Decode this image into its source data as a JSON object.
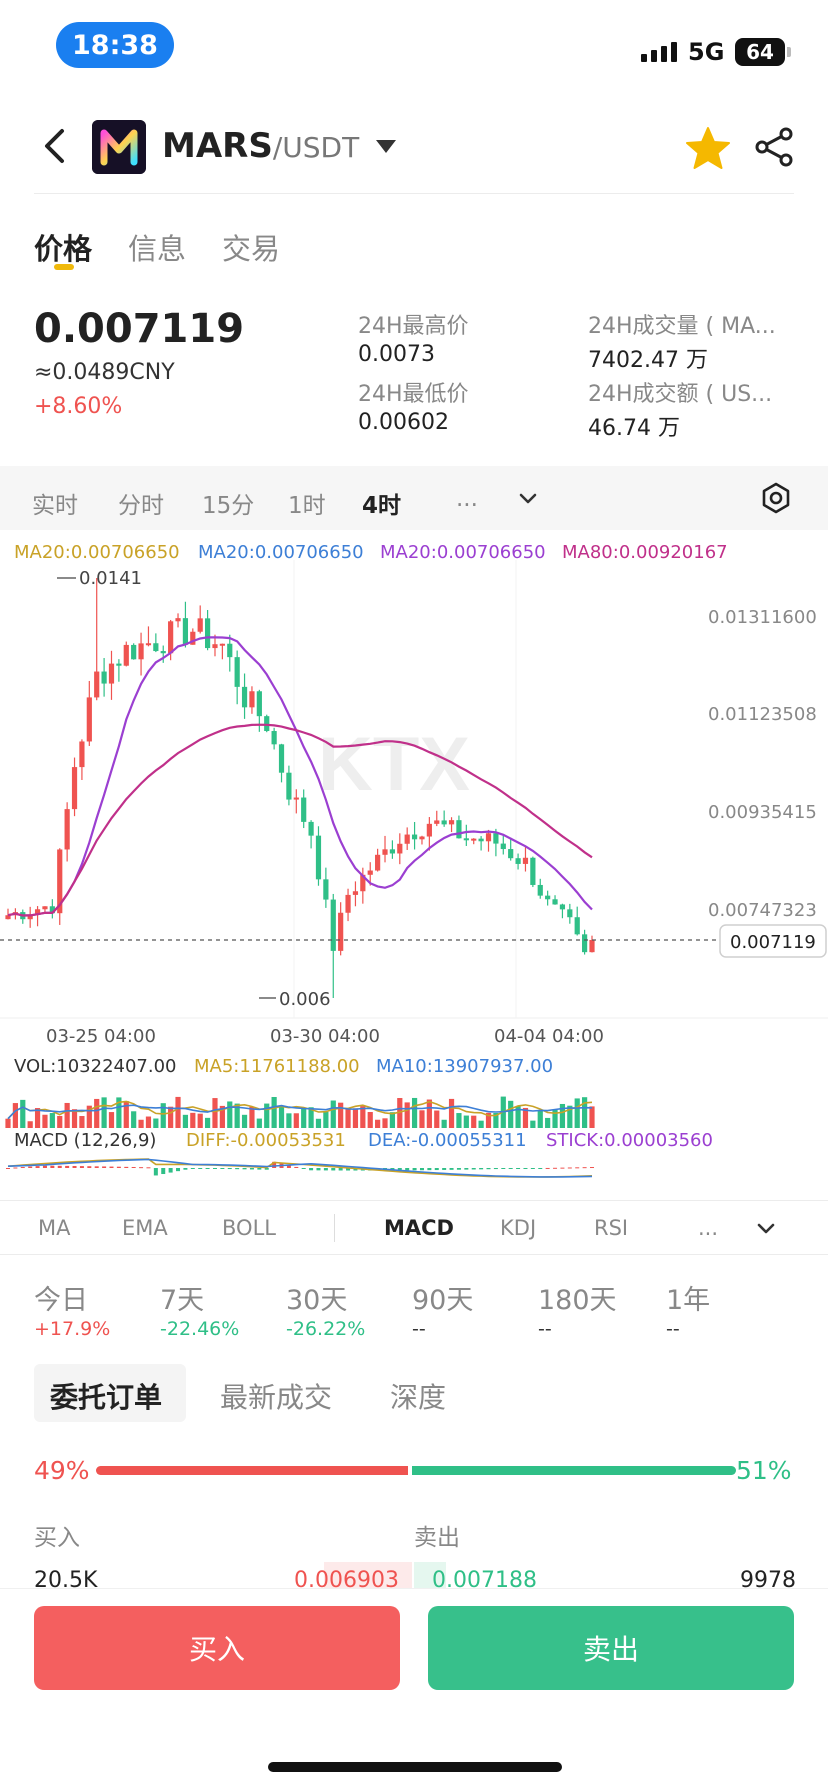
{
  "status_bar": {
    "time": "18:38",
    "network": "5G",
    "battery": "64"
  },
  "header": {
    "base": "MARS",
    "quote": "/USDT"
  },
  "tabs": [
    "价格",
    "信息",
    "交易"
  ],
  "price": {
    "last": "0.007119",
    "cny": "≈0.0489CNY",
    "change": "+8.60%"
  },
  "stats": {
    "high_label": "24H最高价",
    "high": "0.0073",
    "low_label": "24H最低价",
    "low": "0.00602",
    "vol_label": "24H成交量 ( MA...",
    "vol": "7402.47 万",
    "amt_label": "24H成交额 ( US...",
    "amt": "46.74 万"
  },
  "intervals": [
    "实时",
    "分时",
    "15分",
    "1时",
    "4时",
    "..."
  ],
  "ma_legend": [
    {
      "text": "MA20:0.00706650",
      "color": "#c9a227"
    },
    {
      "text": "MA20:0.00706650",
      "color": "#3d7fd6"
    },
    {
      "text": "MA20:0.00706650",
      "color": "#9b3fd1"
    },
    {
      "text": "MA80:0.00920167",
      "color": "#c0308a"
    }
  ],
  "chart": {
    "watermark": "KTX",
    "y_ticks": [
      "0.01311600",
      "0.01123508",
      "0.00935415",
      "0.00747323"
    ],
    "current_price": "0.007119",
    "max_label": "0.0141",
    "min_label": "0.006",
    "x_ticks": [
      "03-25 04:00",
      "03-30 04:00",
      "04-04 04:00"
    ],
    "vol_legend": {
      "vol": "VOL:10322407.00",
      "ma5": "MA5:11761188.00",
      "ma10": "MA10:13907937.00"
    },
    "macd_legend": {
      "name": "MACD (12,26,9)",
      "diff": "DIFF:-0.00053531",
      "dea": "DEA:-0.00055311",
      "stick": "STICK:0.00003560"
    }
  },
  "chart_data": {
    "type": "candlestick",
    "y_ticks": [
      0.013116,
      0.01123508,
      0.00935415,
      0.00747323
    ],
    "ylim": [
      0.0059,
      0.0145
    ],
    "high": 0.0141,
    "low": 0.006,
    "last": 0.007119,
    "x_ticks": [
      "03-25 04:00",
      "03-30 04:00",
      "04-04 04:00"
    ],
    "series": [
      {
        "name": "MA20",
        "value": 0.0070665
      },
      {
        "name": "MA80",
        "value": 0.00920167
      },
      {
        "name": "VOL",
        "value": 10322407.0
      },
      {
        "name": "MA5",
        "value": 11761188.0
      },
      {
        "name": "MA10",
        "value": 13907937.0
      },
      {
        "name": "DIFF",
        "value": -0.00053531
      },
      {
        "name": "DEA",
        "value": -0.00055311
      },
      {
        "name": "STICK",
        "value": 3.56e-05
      }
    ]
  },
  "indicators": [
    "MA",
    "EMA",
    "BOLL",
    "MACD",
    "KDJ",
    "RSI",
    "..."
  ],
  "performance": [
    {
      "label": "今日",
      "value": "+17.9%",
      "color": "#ef5350"
    },
    {
      "label": "7天",
      "value": "-22.46%",
      "color": "#2fbf87"
    },
    {
      "label": "30天",
      "value": "-26.22%",
      "color": "#2fbf87"
    },
    {
      "label": "90天",
      "value": "--",
      "color": "#333333"
    },
    {
      "label": "180天",
      "value": "--",
      "color": "#333333"
    },
    {
      "label": "1年",
      "value": "--",
      "color": "#333333"
    }
  ],
  "order_tabs": [
    "委托订单",
    "最新成交",
    "深度"
  ],
  "ratio": {
    "buy": "49%",
    "sell": "51%",
    "buy_fraction": 0.49
  },
  "orderbook": {
    "buy_header": "买入",
    "sell_header": "卖出",
    "rows": [
      {
        "buy_qty": "20.5K",
        "buy_price": "0.006903",
        "sell_price": "0.007188",
        "sell_qty": "9978"
      }
    ]
  },
  "actions": {
    "buy": "买入",
    "sell": "卖出"
  }
}
